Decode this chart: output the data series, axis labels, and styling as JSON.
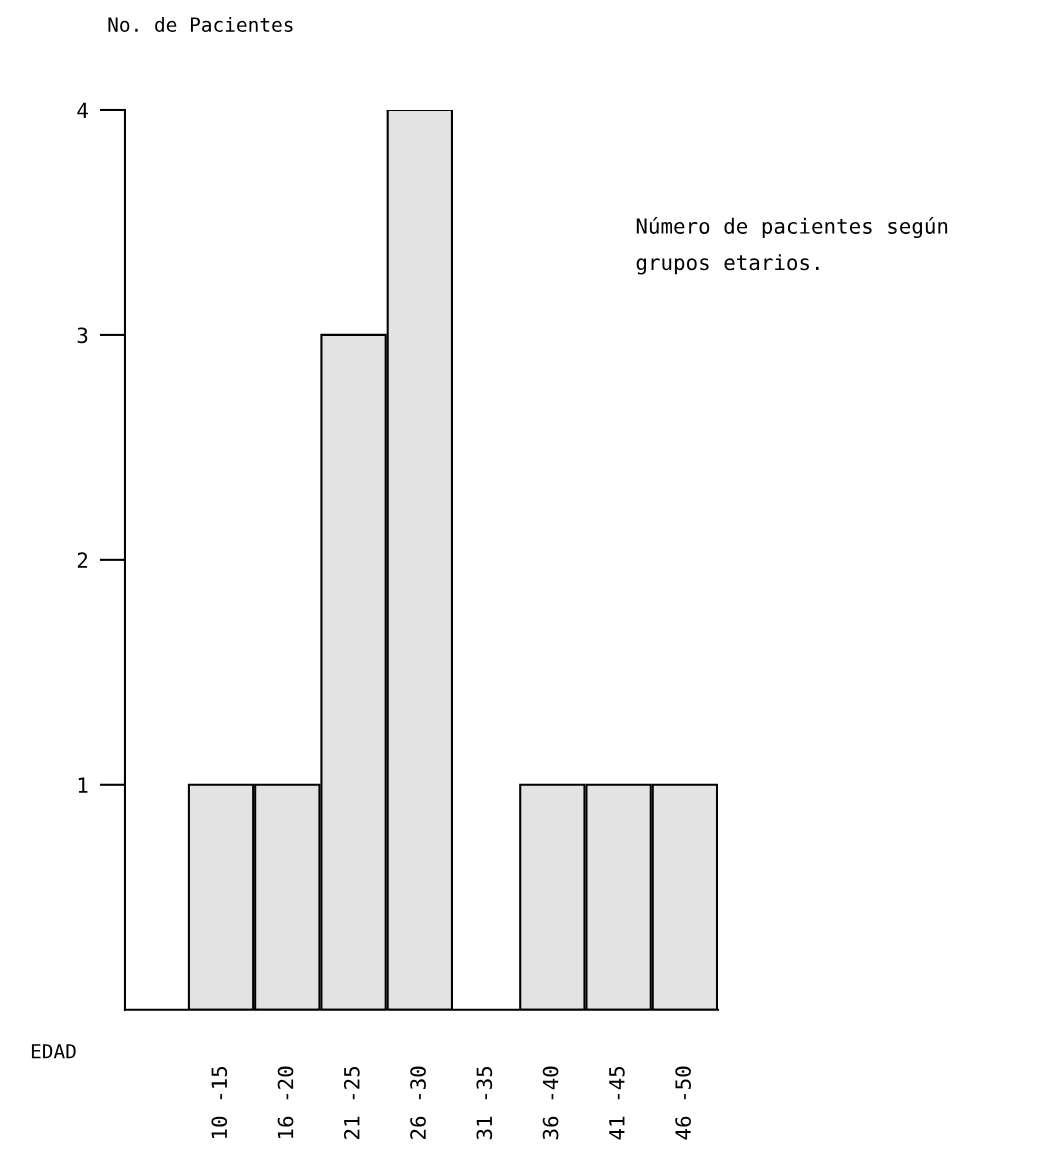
{
  "chart_data": {
    "type": "bar",
    "categories": [
      "10 -15",
      "16 -20",
      "21 -25",
      "26 -30",
      "31 -35",
      "36 -40",
      "41 -45",
      "46 -50"
    ],
    "values": [
      1,
      1,
      3,
      4,
      0,
      1,
      1,
      1
    ],
    "color": "#e3e3e3",
    "ylabel": "No. de Pacientes",
    "xlabel": "EDAD",
    "ylim": [
      0,
      4
    ],
    "yticks": [
      1,
      2,
      3,
      4
    ],
    "annotations": [
      "Número de pacientes según\ngrupos etarios."
    ],
    "grid": false,
    "legend": false
  }
}
